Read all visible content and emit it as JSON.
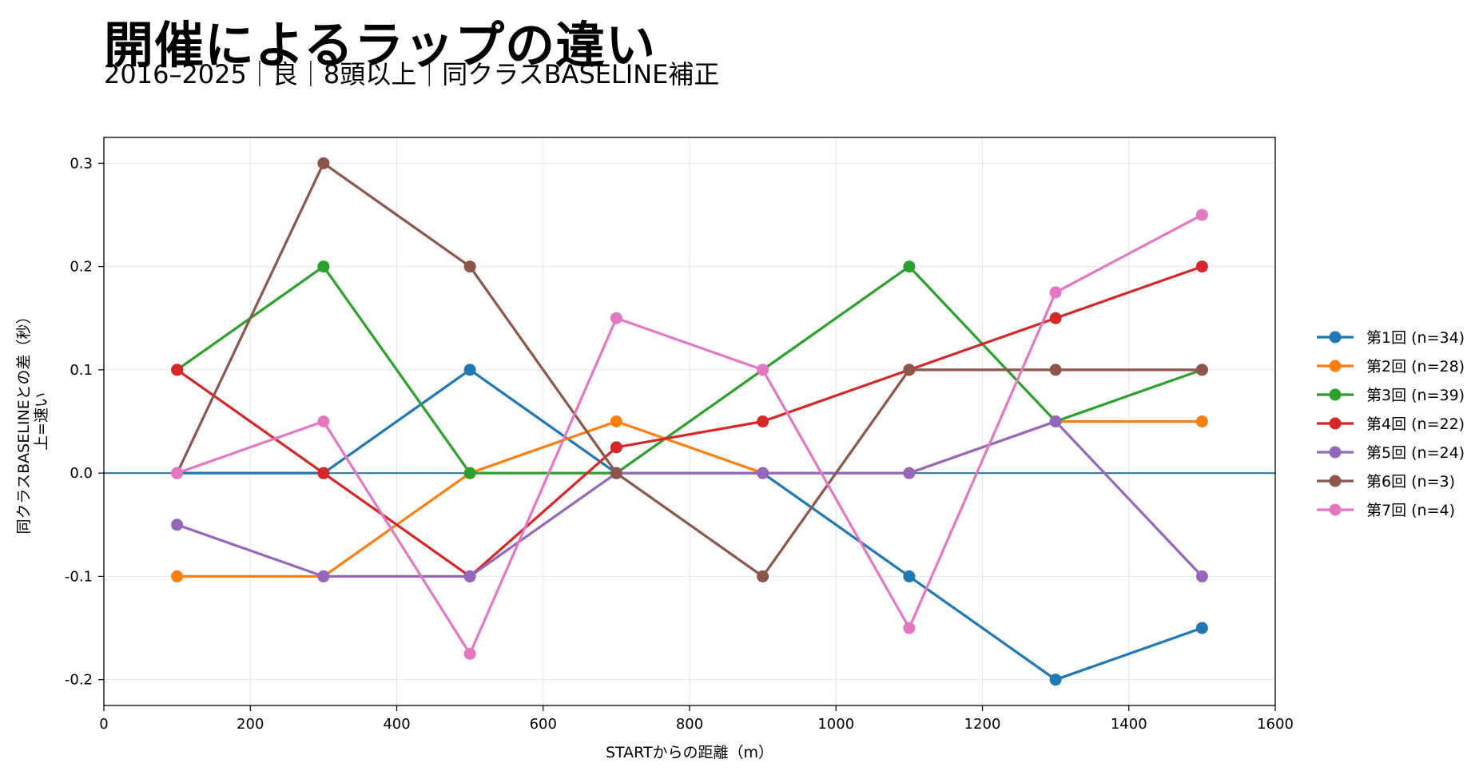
{
  "chart_data": {
    "type": "line",
    "title": "開催によるラップの違い",
    "subtitle": "2016–2025｜良｜8頭以上｜同クラスBASELINE補正",
    "xlabel": "STARTからの距離（m）",
    "ylabel_lines": [
      "同クラスBASELINEとの差（秒）",
      "上=速い"
    ],
    "xlim": [
      0,
      1600
    ],
    "ylim": [
      -0.225,
      0.325
    ],
    "xticks": [
      0,
      200,
      400,
      600,
      800,
      1000,
      1200,
      1400,
      1600
    ],
    "yticks": [
      -0.2,
      -0.1,
      0.0,
      0.1,
      0.2,
      0.3
    ],
    "ytick_labels": [
      "-0.2",
      "-0.1",
      "0.0",
      "0.1",
      "0.2",
      "0.3"
    ],
    "grid": true,
    "reference_line": {
      "y": 0,
      "color": "#1f77b4"
    },
    "legend_position": "right",
    "x": [
      100,
      300,
      500,
      700,
      900,
      1100,
      1300,
      1500
    ],
    "series": [
      {
        "name": "第1回 (n=34)",
        "color": "#1f77b4",
        "values": [
          0.0,
          0.0,
          0.1,
          0.0,
          0.0,
          -0.1,
          -0.2,
          -0.15
        ]
      },
      {
        "name": "第2回 (n=28)",
        "color": "#ff7f0e",
        "values": [
          -0.1,
          -0.1,
          0.0,
          0.05,
          0.0,
          0.0,
          0.05,
          0.05
        ]
      },
      {
        "name": "第3回 (n=39)",
        "color": "#2ca02c",
        "values": [
          0.1,
          0.2,
          0.0,
          0.0,
          0.1,
          0.2,
          0.05,
          0.1
        ]
      },
      {
        "name": "第4回 (n=22)",
        "color": "#d62728",
        "values": [
          0.1,
          0.0,
          -0.1,
          0.025,
          0.05,
          0.1,
          0.15,
          0.2
        ]
      },
      {
        "name": "第5回 (n=24)",
        "color": "#9467bd",
        "values": [
          -0.05,
          -0.1,
          -0.1,
          0.0,
          0.0,
          0.0,
          0.05,
          -0.1
        ]
      },
      {
        "name": "第6回 (n=3)",
        "color": "#8c564b",
        "values": [
          0.0,
          0.3,
          0.2,
          0.0,
          -0.1,
          0.1,
          0.1,
          0.1
        ]
      },
      {
        "name": "第7回 (n=4)",
        "color": "#e377c2",
        "values": [
          0.0,
          0.05,
          -0.175,
          0.15,
          0.1,
          -0.15,
          0.175,
          0.25
        ]
      }
    ]
  }
}
